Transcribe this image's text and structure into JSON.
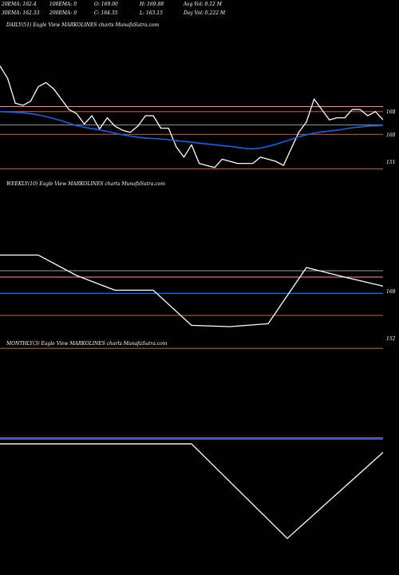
{
  "header": {
    "row1": [
      "20EMA: 162.4",
      "100EMA: 0",
      "O: 169.00",
      "H: 169.88",
      "Avg Vol: 0.12  M"
    ],
    "row2": [
      "30EMA: 162.33",
      "200EMA: 0",
      "C: 164.35",
      "L: 163.15",
      "Day Vol: 0.222  M"
    ]
  },
  "panels": {
    "daily": {
      "label": "DAILY(51) Eagle  View  MARKOLINES charts MunafaSutra.com",
      "ticks": [
        "168",
        "160",
        "151"
      ]
    },
    "weekly": {
      "label": "WEEKLY(10) Eagle  View  MARKOLINES charts MunafaSutra.com",
      "ticks": [
        "168",
        "152"
      ]
    },
    "monthly": {
      "label": "MONTHLY(3) Eagle  View  MARKOLINES charts MunafaSutra.com",
      "ticks": []
    }
  },
  "colors": {
    "background": "#000000",
    "price": "#ffffff",
    "ema": "#1f5fe0",
    "level_orange": "#c8643a",
    "level_pink": "#ff8ab0",
    "level_gray": "#9a9a9a"
  },
  "chart_data": [
    {
      "type": "line",
      "panel": "daily",
      "ylim": [
        149.5,
        175.5
      ],
      "series": [
        {
          "values": [
            175,
            172,
            166,
            165.5,
            166.5,
            170,
            171,
            169.5,
            167,
            164.5,
            163.5,
            161,
            163,
            159.8,
            162.5,
            160.5,
            159.5,
            159,
            160.5,
            163,
            163,
            160,
            160,
            155.5,
            153,
            156,
            151.5,
            151,
            150.5,
            152.5,
            152,
            151.5,
            151.5,
            151.5,
            153,
            152.5,
            152,
            151,
            155,
            159,
            161.5,
            167,
            164.5,
            162,
            162.5,
            162.5,
            164.5,
            164.5,
            163,
            164,
            162
          ]
        },
        {
          "values": [
            164,
            163.9,
            163.8,
            163.7,
            163.5,
            163.2,
            162.8,
            162.3,
            161.8,
            161.2,
            160.6,
            160.2,
            159.9,
            159.6,
            159.2,
            158.8,
            158.4,
            158.1,
            157.8,
            157.6,
            157.5,
            157.4,
            157.2,
            157,
            156.8,
            156.6,
            156.4,
            156.2,
            156,
            155.8,
            155.6,
            155.4,
            155.1,
            155,
            155.2,
            155.6,
            156.1,
            156.7,
            157.3,
            157.9,
            158.4,
            158.8,
            159.1,
            159.3,
            159.5,
            159.8,
            160.1,
            160.3,
            160.5,
            160.6,
            160.7
          ]
        }
      ],
      "levels": [
        {
          "value": 165.2,
          "color": "#ff8ab0"
        },
        {
          "value": 164,
          "color": "#c8643a"
        },
        {
          "value": 160.8,
          "color": "#9a9a9a"
        },
        {
          "value": 158.5,
          "color": "#c8643a"
        },
        {
          "value": 150.2,
          "color": "#c8643a"
        }
      ]
    },
    {
      "type": "line",
      "panel": "weekly",
      "ylim": [
        149,
        184
      ],
      "series": [
        {
          "values": [
            180.4,
            180.4,
            174,
            169.4,
            169.4,
            158.4,
            158,
            158.9,
            176.5,
            173.5,
            170.7
          ]
        }
      ],
      "levels": [
        {
          "value": 175.5,
          "color": "#9a9a9a"
        },
        {
          "value": 173.5,
          "color": "#ff8ab0"
        },
        {
          "value": 168.4,
          "color": "#1f5fe0"
        },
        {
          "value": 161.5,
          "color": "#c8643a"
        },
        {
          "value": 151.2,
          "color": "#c8643a"
        }
      ]
    },
    {
      "type": "line",
      "panel": "monthly",
      "ylim": [
        130,
        195
      ],
      "series": [
        {
          "values": [
            190,
            190,
            190,
            135,
            185
          ]
        }
      ],
      "levels": [
        {
          "value": 193.5,
          "color": "#ff8ab0"
        },
        {
          "value": 192.6,
          "color": "#1f5fe0"
        }
      ]
    }
  ]
}
